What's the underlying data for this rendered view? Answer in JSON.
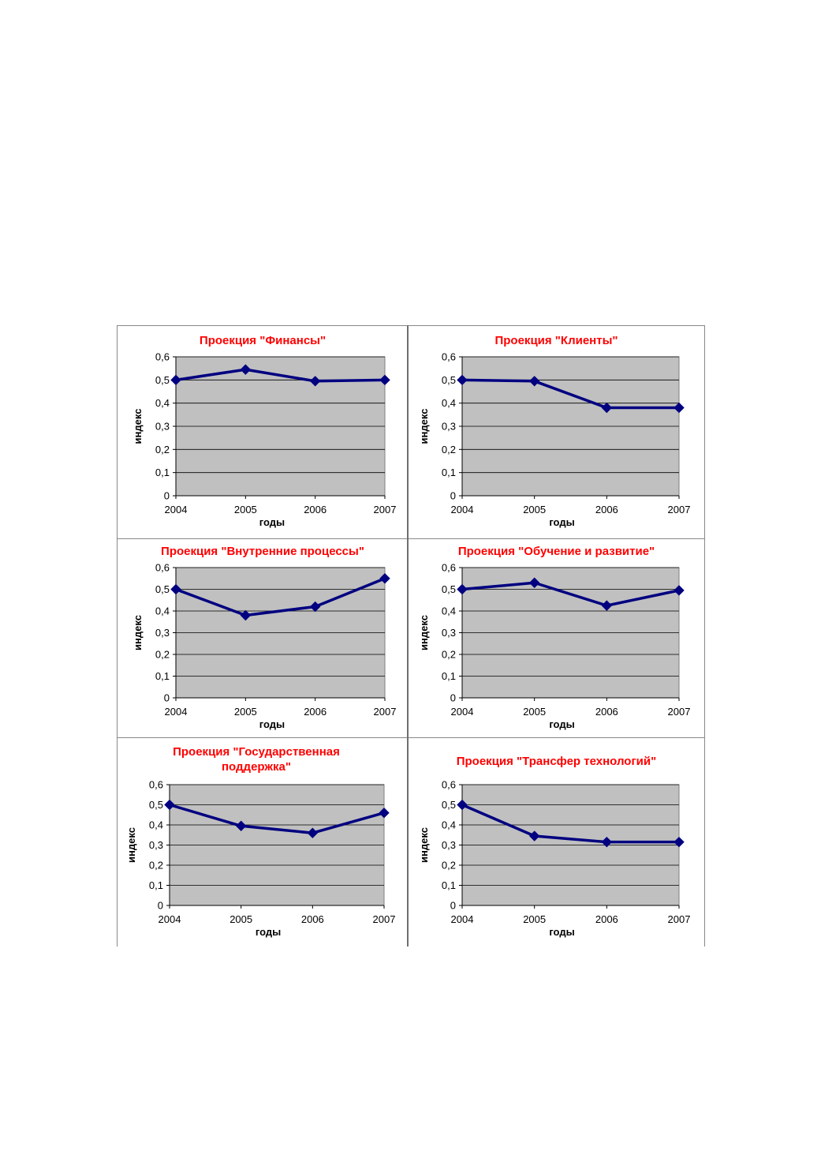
{
  "colors": {
    "title": "#ff0000",
    "plot_area": "#c0c0c0",
    "series": "#000080",
    "grid": "#000000"
  },
  "chart_data": [
    {
      "type": "line",
      "title_lines": [
        "Проекция \"Финансы\""
      ],
      "xlabel": "годы",
      "ylabel": "индекс",
      "categories": [
        "2004",
        "2005",
        "2006",
        "2007"
      ],
      "values": [
        0.5,
        0.545,
        0.495,
        0.5
      ],
      "ylim": [
        0,
        0.6
      ],
      "yticks": [
        "0",
        "0,1",
        "0,2",
        "0,3",
        "0,4",
        "0,5",
        "0,6"
      ],
      "grid": true,
      "marker": "diamond"
    },
    {
      "type": "line",
      "title_lines": [
        "Проекция \"Клиенты\""
      ],
      "xlabel": "годы",
      "ylabel": "индекс",
      "categories": [
        "2004",
        "2005",
        "2006",
        "2007"
      ],
      "values": [
        0.5,
        0.495,
        0.38,
        0.38
      ],
      "ylim": [
        0,
        0.6
      ],
      "yticks": [
        "0",
        "0,1",
        "0,2",
        "0,3",
        "0,4",
        "0,5",
        "0,6"
      ],
      "grid": true,
      "marker": "diamond"
    },
    {
      "type": "line",
      "title_lines": [
        "Проекция \"Внутренние процессы\""
      ],
      "xlabel": "годы",
      "ylabel": "индекс",
      "categories": [
        "2004",
        "2005",
        "2006",
        "2007"
      ],
      "values": [
        0.5,
        0.38,
        0.42,
        0.55
      ],
      "ylim": [
        0,
        0.6
      ],
      "yticks": [
        "0",
        "0,1",
        "0,2",
        "0,3",
        "0,4",
        "0,5",
        "0,6"
      ],
      "grid": true,
      "marker": "diamond"
    },
    {
      "type": "line",
      "title_lines": [
        "Проекция \"Обучение и развитие\""
      ],
      "xlabel": "годы",
      "ylabel": "индекс",
      "categories": [
        "2004",
        "2005",
        "2006",
        "2007"
      ],
      "values": [
        0.5,
        0.53,
        0.425,
        0.495
      ],
      "ylim": [
        0,
        0.6
      ],
      "yticks": [
        "0",
        "0,1",
        "0,2",
        "0,3",
        "0,4",
        "0,5",
        "0,6"
      ],
      "grid": true,
      "marker": "diamond"
    },
    {
      "type": "line",
      "title_lines": [
        "Проекция \"Государственная",
        "поддержка\""
      ],
      "xlabel": "годы",
      "ylabel": "индекс",
      "categories": [
        "2004",
        "2005",
        "2006",
        "2007"
      ],
      "values": [
        0.5,
        0.395,
        0.36,
        0.46
      ],
      "ylim": [
        0,
        0.6
      ],
      "yticks": [
        "0",
        "0,1",
        "0,2",
        "0,3",
        "0,4",
        "0,5",
        "0,6"
      ],
      "grid": true,
      "marker": "diamond"
    },
    {
      "type": "line",
      "title_lines": [
        "Проекция  \"Трансфер  технологий\""
      ],
      "xlabel": "годы",
      "ylabel": "индекс",
      "categories": [
        "2004",
        "2005",
        "2006",
        "2007"
      ],
      "values": [
        0.5,
        0.345,
        0.315,
        0.315
      ],
      "ylim": [
        0,
        0.6
      ],
      "yticks": [
        "0",
        "0,1",
        "0,2",
        "0,3",
        "0,4",
        "0,5",
        "0,6"
      ],
      "grid": true,
      "marker": "diamond"
    }
  ]
}
